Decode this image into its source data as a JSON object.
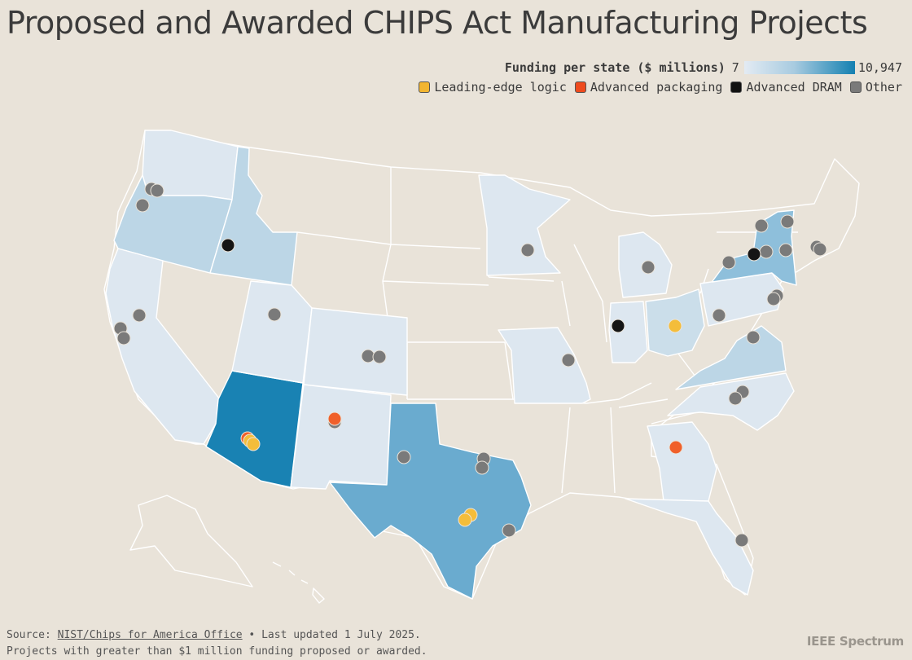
{
  "title": "Proposed and Awarded CHIPS Act Manufacturing Projects",
  "scale": {
    "label": "Funding per state ($ millions)",
    "min": "7",
    "max": "10,947",
    "color_low": "#e3ebf3",
    "color_high": "#1480b1"
  },
  "legend": [
    {
      "label": "Leading-edge logic",
      "color": "#f2b530"
    },
    {
      "label": "Advanced packaging",
      "color": "#ee4b1e"
    },
    {
      "label": "Advanced DRAM",
      "color": "#111111"
    },
    {
      "label": "Other",
      "color": "#7a7a7a"
    }
  ],
  "states": [
    {
      "id": "WA",
      "funding_level": "low"
    },
    {
      "id": "OR",
      "funding_level": "light"
    },
    {
      "id": "ID",
      "funding_level": "light"
    },
    {
      "id": "CA",
      "funding_level": "low"
    },
    {
      "id": "AZ",
      "funding_level": "max"
    },
    {
      "id": "UT",
      "funding_level": "low"
    },
    {
      "id": "CO",
      "funding_level": "low"
    },
    {
      "id": "NM",
      "funding_level": "low"
    },
    {
      "id": "TX",
      "funding_level": "high"
    },
    {
      "id": "MN",
      "funding_level": "low"
    },
    {
      "id": "MO",
      "funding_level": "low"
    },
    {
      "id": "MI",
      "funding_level": "low"
    },
    {
      "id": "IN",
      "funding_level": "low"
    },
    {
      "id": "OH",
      "funding_level": "light"
    },
    {
      "id": "PA",
      "funding_level": "low"
    },
    {
      "id": "NY",
      "funding_level": "mid"
    },
    {
      "id": "VA",
      "funding_level": "light"
    },
    {
      "id": "NC",
      "funding_level": "low"
    },
    {
      "id": "GA",
      "funding_level": "low"
    },
    {
      "id": "FL",
      "funding_level": "low"
    }
  ],
  "footer": {
    "source_prefix": "Source: ",
    "source_link": "NIST/Chips for America Office",
    "updated": " • Last updated 1 July 2025.",
    "note": "Projects with greater than $1 million funding proposed or awarded."
  },
  "brand": "IEEE Spectrum"
}
